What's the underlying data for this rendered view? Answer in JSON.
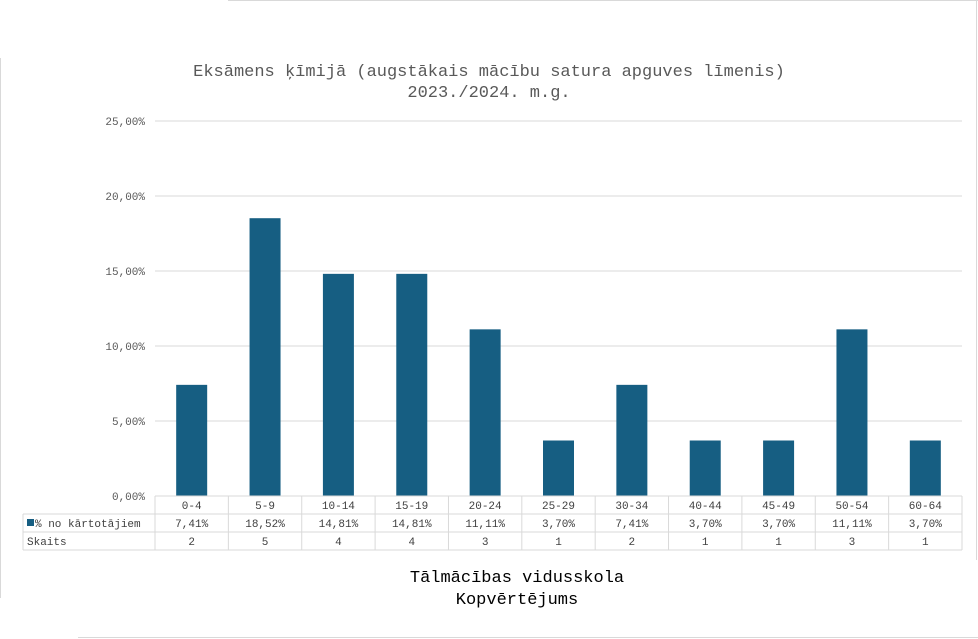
{
  "chart_data": {
    "type": "bar",
    "title_line1": "Eksāmens ķīmijā (augstākais mācību satura apguves līmenis)",
    "title_line2": "2023./2024. m.g.",
    "categories": [
      "0-4",
      "5-9",
      "10-14",
      "15-19",
      "20-24",
      "25-29",
      "30-34",
      "40-44",
      "45-49",
      "50-54",
      "60-64"
    ],
    "series": [
      {
        "name": "% no kārtotājiem",
        "values": [
          7.41,
          18.52,
          14.81,
          14.81,
          11.11,
          3.7,
          7.41,
          3.7,
          3.7,
          11.11,
          3.7
        ],
        "labels": [
          "7,41%",
          "18,52%",
          "14,81%",
          "14,81%",
          "11,11%",
          "3,70%",
          "7,41%",
          "3,70%",
          "3,70%",
          "11,11%",
          "3,70%"
        ],
        "color": "#165e82"
      }
    ],
    "table_rows": [
      {
        "label": "Skaits",
        "values": [
          "2",
          "5",
          "4",
          "4",
          "3",
          "1",
          "2",
          "1",
          "1",
          "3",
          "1"
        ]
      }
    ],
    "y_ticks": [
      "0,00%",
      "5,00%",
      "10,00%",
      "15,00%",
      "20,00%",
      "25,00%"
    ],
    "ylim": [
      0,
      25
    ],
    "grid": true,
    "legend": "data-table"
  },
  "footer": {
    "line1": "Tālmācības vidusskola",
    "line2": "Kopvērtējums"
  }
}
